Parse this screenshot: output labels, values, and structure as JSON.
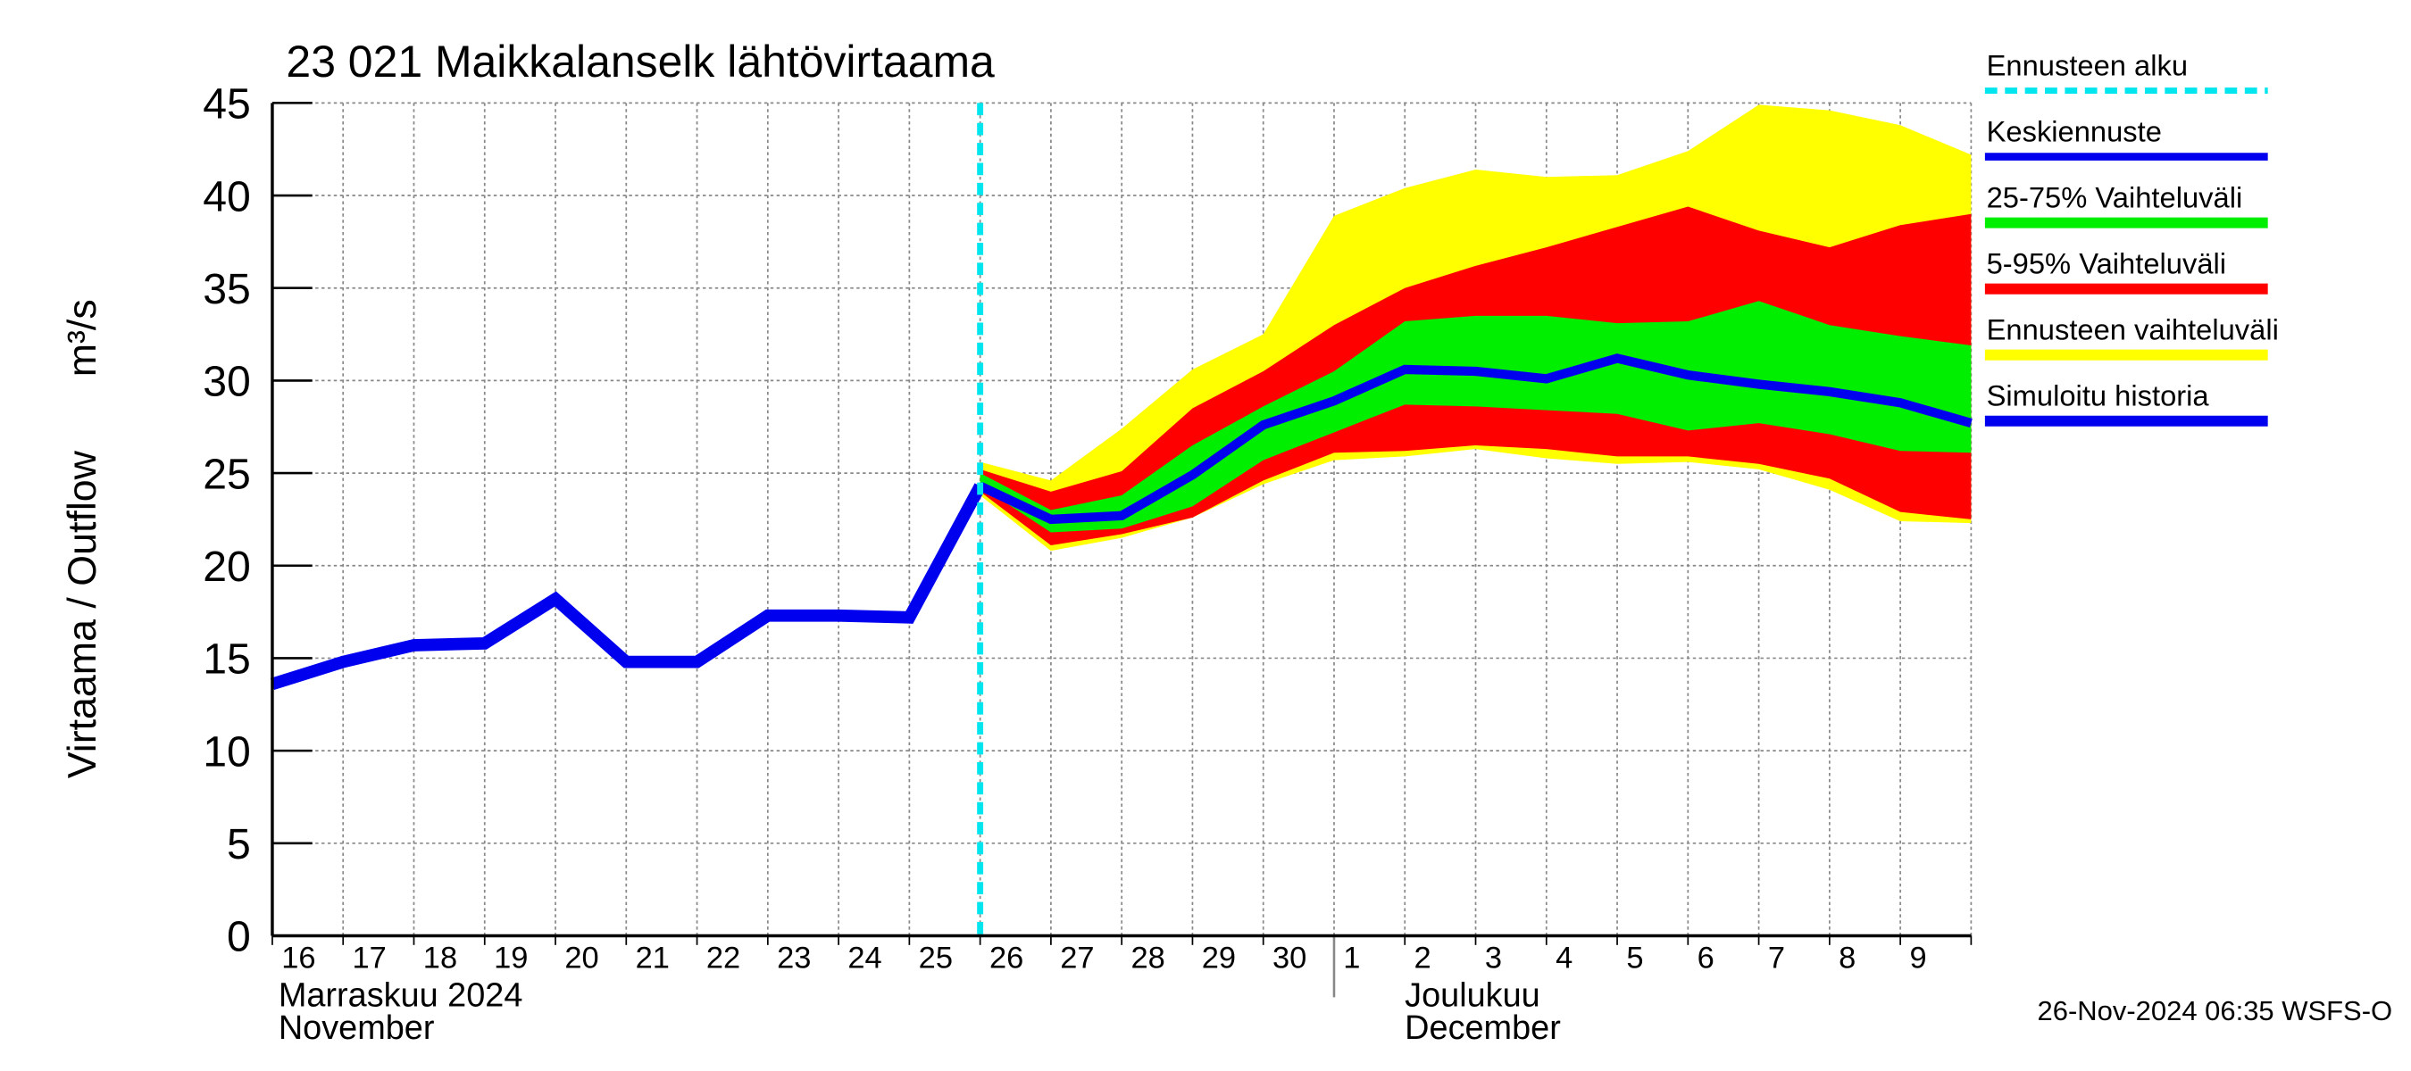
{
  "chart_data": {
    "type": "line",
    "title": "23 021 Maikkalanselk lähtövirtaama",
    "y_label": "Virtaama / Outflow",
    "y_unit": "m³/s",
    "month_labels": [
      {
        "label": "Marraskuu 2024",
        "sub": "November",
        "at": "16"
      },
      {
        "label": "Joulukuu",
        "sub": "December",
        "at": "1"
      }
    ],
    "footer": "26-Nov-2024 06:35 WSFS-O",
    "categories": [
      "16",
      "17",
      "18",
      "19",
      "20",
      "21",
      "22",
      "23",
      "24",
      "25",
      "26",
      "27",
      "28",
      "29",
      "30",
      "1",
      "2",
      "3",
      "4",
      "5",
      "6",
      "7",
      "8",
      "9",
      null
    ],
    "ylim": [
      0,
      45
    ],
    "yticks": [
      0,
      5,
      10,
      15,
      20,
      25,
      30,
      35,
      40,
      45
    ],
    "grid": true,
    "forecast_start": {
      "name": "Ennusteen alku",
      "color": "#00e5ee",
      "at": "26"
    },
    "bands": [
      {
        "name": "Ennusteen vaihteluväli",
        "color": "#ffff00",
        "high": [
          null,
          null,
          null,
          null,
          null,
          null,
          null,
          null,
          null,
          null,
          25.6,
          24.6,
          27.4,
          30.6,
          32.5,
          38.9,
          40.4,
          41.4,
          41.0,
          41.1,
          42.4,
          44.9,
          44.6,
          43.8,
          42.2
        ],
        "low": [
          null,
          null,
          null,
          null,
          null,
          null,
          null,
          null,
          null,
          null,
          23.8,
          20.8,
          21.5,
          22.6,
          24.4,
          25.7,
          25.9,
          26.3,
          25.8,
          25.5,
          25.6,
          25.2,
          24.1,
          22.4,
          22.3
        ]
      },
      {
        "name": "5-95% Vaihteluväli",
        "color": "#ff0000",
        "high": [
          null,
          null,
          null,
          null,
          null,
          null,
          null,
          null,
          null,
          null,
          25.2,
          24.0,
          25.1,
          28.5,
          30.5,
          33.0,
          35.0,
          36.2,
          37.2,
          38.3,
          39.4,
          38.1,
          37.2,
          38.4,
          39.0
        ],
        "low": [
          null,
          null,
          null,
          null,
          null,
          null,
          null,
          null,
          null,
          null,
          24.0,
          21.1,
          21.7,
          22.6,
          24.6,
          26.1,
          26.2,
          26.5,
          26.3,
          25.9,
          25.9,
          25.5,
          24.7,
          22.9,
          22.5
        ]
      },
      {
        "name": "25-75% Vaihteluväli",
        "color": "#00ee00",
        "high": [
          null,
          null,
          null,
          null,
          null,
          null,
          null,
          null,
          null,
          null,
          25.0,
          23.0,
          23.8,
          26.5,
          28.6,
          30.5,
          33.2,
          33.5,
          33.5,
          33.1,
          33.2,
          34.3,
          33.0,
          32.4,
          31.9
        ],
        "low": [
          null,
          null,
          null,
          null,
          null,
          null,
          null,
          null,
          null,
          null,
          24.3,
          21.8,
          22.0,
          23.2,
          25.7,
          27.2,
          28.7,
          28.6,
          28.4,
          28.2,
          27.3,
          27.7,
          27.1,
          26.2,
          26.1
        ]
      }
    ],
    "series": [
      {
        "name": "Keskiennuste",
        "color": "#0000ee",
        "width": 6,
        "values": [
          null,
          null,
          null,
          null,
          null,
          null,
          null,
          null,
          null,
          null,
          24.3,
          22.5,
          22.7,
          24.9,
          27.6,
          28.9,
          30.6,
          30.5,
          30.1,
          31.2,
          30.3,
          29.8,
          29.4,
          28.8,
          27.7
        ]
      },
      {
        "name": "Simuloitu historia",
        "color": "#0000ee",
        "width": 8,
        "values": [
          13.6,
          14.8,
          15.7,
          15.8,
          18.2,
          14.8,
          14.8,
          17.3,
          17.3,
          17.2,
          24.3,
          null,
          null,
          null,
          null,
          null,
          null,
          null,
          null,
          null,
          null,
          null,
          null,
          null,
          null
        ]
      }
    ]
  }
}
